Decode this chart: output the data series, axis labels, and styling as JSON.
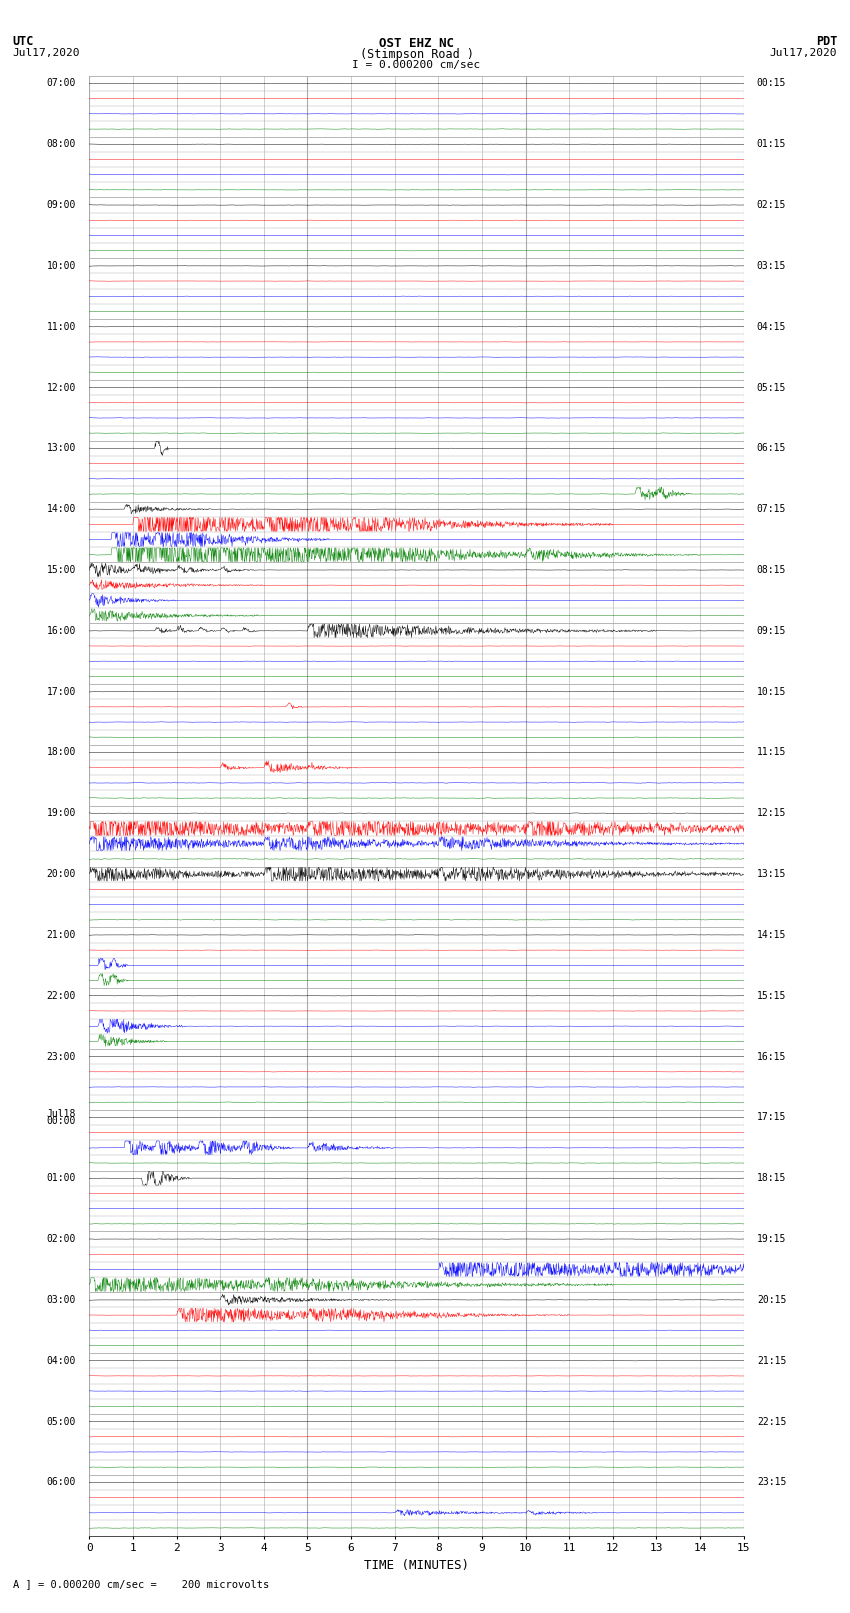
{
  "title_line1": "OST EHZ NC",
  "title_line2": "(Stimpson Road )",
  "title_line3": "I = 0.000200 cm/sec",
  "left_header_line1": "UTC",
  "left_header_line2": "Jul17,2020",
  "right_header_line1": "PDT",
  "right_header_line2": "Jul17,2020",
  "xlabel": "TIME (MINUTES)",
  "footer": "A ] = 0.000200 cm/sec =    200 microvolts",
  "utc_labels": [
    "07:00",
    "08:00",
    "09:00",
    "10:00",
    "11:00",
    "12:00",
    "13:00",
    "14:00",
    "15:00",
    "16:00",
    "17:00",
    "18:00",
    "19:00",
    "20:00",
    "21:00",
    "22:00",
    "23:00",
    "Jul18\n00:00",
    "01:00",
    "02:00",
    "03:00",
    "04:00",
    "05:00",
    "06:00"
  ],
  "pdt_labels": [
    "00:15",
    "01:15",
    "02:15",
    "03:15",
    "04:15",
    "05:15",
    "06:15",
    "07:15",
    "08:15",
    "09:15",
    "10:15",
    "11:15",
    "12:15",
    "13:15",
    "14:15",
    "15:15",
    "16:15",
    "17:15",
    "18:15",
    "19:15",
    "20:15",
    "21:15",
    "22:15",
    "23:15"
  ],
  "n_hours": 24,
  "traces_per_hour": 4,
  "n_cols": 15,
  "colors_cycle": [
    "black",
    "red",
    "blue",
    "green"
  ],
  "background_color": "white",
  "grid_color": "#aaaaaa",
  "fig_width": 8.5,
  "fig_height": 16.13,
  "dpi": 100,
  "xmin": 0,
  "xmax": 15,
  "xticks": [
    0,
    1,
    2,
    3,
    4,
    5,
    6,
    7,
    8,
    9,
    10,
    11,
    12,
    13,
    14,
    15
  ]
}
